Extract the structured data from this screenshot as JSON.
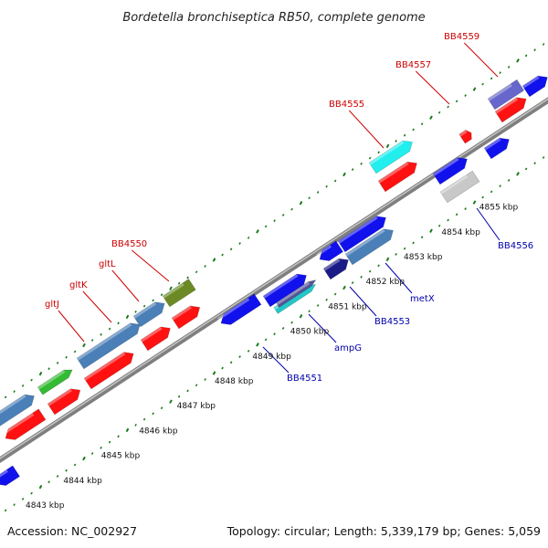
{
  "title": "Bordetella bronchiseptica RB50, complete genome",
  "footer": {
    "accession": "Accession: NC_002927",
    "summary": "Topology: circular; Length: 5,339,179 bp; Genes: 5,059"
  },
  "colors": {
    "backbone": "#8a8a8a",
    "ticks": "#1a7a1a",
    "top_label": "#cc0000",
    "bottom_label": "#0000aa"
  },
  "scale_labels": [
    "4843 kbp",
    "4844 kbp",
    "4845 kbp",
    "4846 kbp",
    "4847 kbp",
    "4848 kbp",
    "4849 kbp",
    "4850 kbp",
    "4851 kbp",
    "4852 kbp",
    "4853 kbp",
    "4854 kbp",
    "4855 kbp"
  ],
  "top_labels": [
    {
      "text": "gltJ"
    },
    {
      "text": "gltK"
    },
    {
      "text": "gltL"
    },
    {
      "text": "BB4550"
    },
    {
      "text": "BB4555"
    },
    {
      "text": "BB4557"
    },
    {
      "text": "BB4559"
    }
  ],
  "bottom_labels": [
    {
      "text": "BB4551"
    },
    {
      "text": "ampG"
    },
    {
      "text": "BB4553"
    },
    {
      "text": "metX"
    },
    {
      "text": "BB4556"
    }
  ]
}
